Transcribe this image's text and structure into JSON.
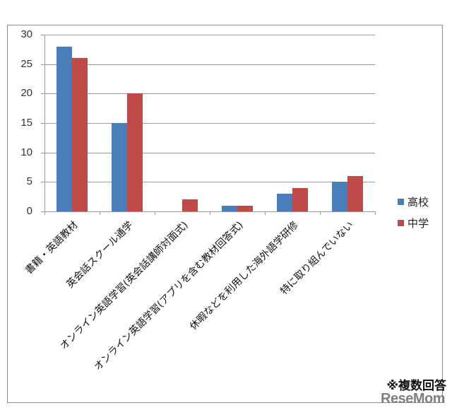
{
  "chart_data": {
    "type": "bar",
    "title": "",
    "xlabel": "",
    "ylabel": "",
    "ylim": [
      0,
      30
    ],
    "yticks": [
      0,
      5,
      10,
      15,
      20,
      25,
      30
    ],
    "grid": true,
    "legend_position": "right",
    "categories": [
      "書籍・英語教材",
      "英会話スクール通学",
      "オンライン英語学習(英会話講師対面式)",
      "オンライン英語学習(アプリを含む教材回答式)",
      "休暇などを利用した海外語学研修",
      "特に取り組んでいない"
    ],
    "series": [
      {
        "name": "高校",
        "color": "#4a7ebb",
        "values": [
          28,
          15,
          0,
          1,
          3,
          5
        ]
      },
      {
        "name": "中学",
        "color": "#be4b48",
        "values": [
          26,
          20,
          2,
          1,
          4,
          6
        ]
      }
    ],
    "annotations": [
      "※複数回答"
    ]
  },
  "legend": {
    "items": [
      {
        "label": "高校"
      },
      {
        "label": "中学"
      }
    ]
  },
  "note": "※複数回答",
  "watermark": "ReseMom"
}
